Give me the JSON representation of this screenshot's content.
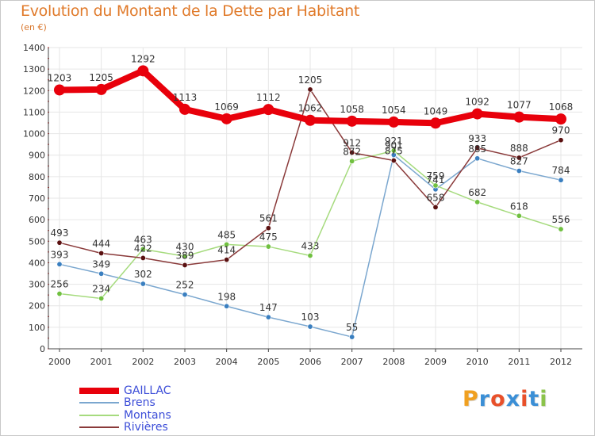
{
  "header": {
    "title": "Evolution du Montant de la Dette par Habitant",
    "subtitle": "(en €)"
  },
  "logo": {
    "text": "Proxiti",
    "letters": [
      "P",
      "r",
      "o",
      "x",
      "i",
      "t",
      "i"
    ],
    "colors": [
      "#f0a020",
      "#3b8fd6",
      "#e8502a",
      "#3b8fd6",
      "#e8502a",
      "#3b8fd6",
      "#8bc34a"
    ]
  },
  "chart_data": {
    "type": "line",
    "title": "Evolution du Montant de la Dette par Habitant",
    "subtitle": "(en €)",
    "x": [
      "2000",
      "2001",
      "2002",
      "2003",
      "2004",
      "2005",
      "2006",
      "2007",
      "2008",
      "2009",
      "2010",
      "2011",
      "2012"
    ],
    "ylim": [
      0,
      1400
    ],
    "yticks": [
      0,
      100,
      200,
      300,
      400,
      500,
      600,
      700,
      800,
      900,
      1000,
      1100,
      1200,
      1300,
      1400
    ],
    "grid": true,
    "legend_position": "bottom-left",
    "series": [
      {
        "name": "GAILLAC",
        "color": "#e8000b",
        "style": "thick",
        "marker_color": "#e8000b",
        "values": [
          1203,
          1205,
          1292,
          1113,
          1069,
          1112,
          1062,
          1058,
          1054,
          1049,
          1092,
          1077,
          1068
        ]
      },
      {
        "name": "Brens",
        "color": "#7ba7cf",
        "style": "thin",
        "marker_color": "#3a7fc0",
        "values": [
          393,
          349,
          302,
          252,
          198,
          147,
          103,
          55,
          901,
          741,
          885,
          827,
          784
        ]
      },
      {
        "name": "Montans",
        "color": "#a6db7e",
        "style": "thin",
        "marker_color": "#70c040",
        "values": [
          256,
          234,
          463,
          430,
          485,
          475,
          433,
          872,
          921,
          759,
          682,
          618,
          556
        ]
      },
      {
        "name": "Rivières",
        "color": "#8a3a3a",
        "style": "thin",
        "marker_color": "#5a1010",
        "values": [
          493,
          444,
          422,
          389,
          414,
          561,
          1205,
          912,
          875,
          658,
          933,
          888,
          970
        ]
      }
    ]
  }
}
